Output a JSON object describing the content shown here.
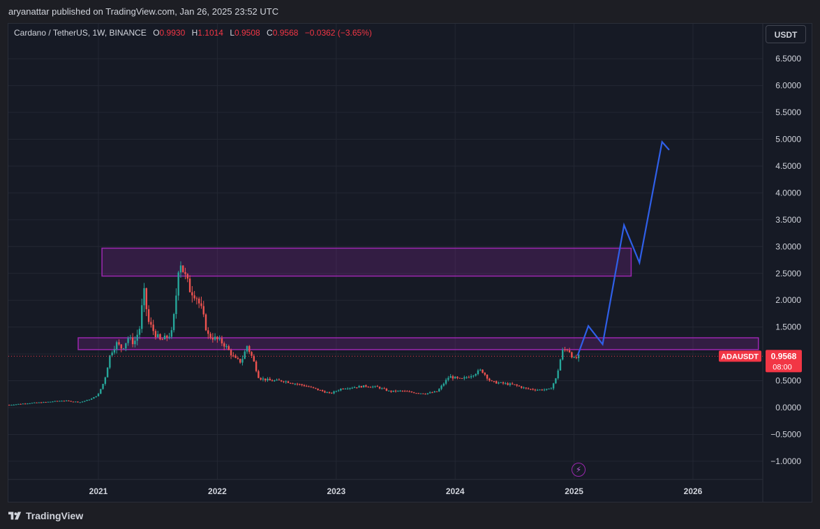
{
  "header": {
    "publisher_text": "aryanattar published on TradingView.com, Jan 26, 2025 23:52 UTC"
  },
  "legend": {
    "symbol": "Cardano / TetherUS, 1W, BINANCE",
    "open_label": "O",
    "open": "0.9930",
    "high_label": "H",
    "high": "1.1014",
    "low_label": "L",
    "low": "0.9508",
    "close_label": "C",
    "close": "0.9568",
    "change": "−0.0362 (−3.65%)"
  },
  "currency_button": "USDT",
  "price_badge": {
    "symbol": "ADAUSDT",
    "price": "0.9568",
    "countdown": "08:00"
  },
  "footer": {
    "brand": "TradingView"
  },
  "colors": {
    "up": "#26a69a",
    "down": "#ef5350",
    "zone_border": "#9c27b0",
    "zone_fill": "rgba(156,39,176,0.22)",
    "projection": "#2f5fe8",
    "price_line": "#f23645",
    "grid": "#232733",
    "text": "#d1d4dc"
  },
  "chart_data": {
    "type": "candlestick",
    "symbol": "ADAUSDT",
    "timeframe": "1W",
    "exchange": "BINANCE",
    "x_ticks": [
      "2021",
      "2022",
      "2023",
      "2024",
      "2025",
      "2026"
    ],
    "x_tick_dates": [
      2021.0,
      2022.0,
      2023.0,
      2024.0,
      2025.0,
      2026.0
    ],
    "y_ticks": [
      "6.5000",
      "6.0000",
      "5.5000",
      "5.0000",
      "4.5000",
      "4.0000",
      "3.5000",
      "3.0000",
      "2.5000",
      "2.0000",
      "1.5000",
      "1.0000",
      "0.5000",
      "0.0000",
      "−0.5000",
      "−1.0000"
    ],
    "y_tick_values": [
      6.5,
      6.0,
      5.5,
      5.0,
      4.5,
      4.0,
      3.5,
      3.0,
      2.5,
      2.0,
      1.5,
      1.0,
      0.5,
      0.0,
      -0.5,
      -1.0
    ],
    "ylim": [
      -1.4,
      6.85
    ],
    "xlim": [
      2020.23,
      2026.7
    ],
    "last_price": 0.9568,
    "price_path": [
      [
        2020.25,
        0.05
      ],
      [
        2020.4,
        0.08
      ],
      [
        2020.55,
        0.1
      ],
      [
        2020.7,
        0.13
      ],
      [
        2020.85,
        0.1
      ],
      [
        2020.95,
        0.17
      ],
      [
        2021.0,
        0.25
      ],
      [
        2021.05,
        0.5
      ],
      [
        2021.1,
        1.0
      ],
      [
        2021.15,
        1.2
      ],
      [
        2021.2,
        1.1
      ],
      [
        2021.25,
        1.3
      ],
      [
        2021.3,
        1.2
      ],
      [
        2021.35,
        1.5
      ],
      [
        2021.38,
        2.2
      ],
      [
        2021.42,
        1.6
      ],
      [
        2021.47,
        1.4
      ],
      [
        2021.52,
        1.25
      ],
      [
        2021.57,
        1.3
      ],
      [
        2021.62,
        1.4
      ],
      [
        2021.65,
        2.0
      ],
      [
        2021.68,
        2.8
      ],
      [
        2021.72,
        2.5
      ],
      [
        2021.77,
        2.2
      ],
      [
        2021.82,
        2.1
      ],
      [
        2021.87,
        1.8
      ],
      [
        2021.92,
        1.35
      ],
      [
        2021.97,
        1.3
      ],
      [
        2022.05,
        1.2
      ],
      [
        2022.1,
        1.05
      ],
      [
        2022.15,
        0.9
      ],
      [
        2022.2,
        0.85
      ],
      [
        2022.25,
        1.15
      ],
      [
        2022.3,
        0.9
      ],
      [
        2022.35,
        0.55
      ],
      [
        2022.45,
        0.5
      ],
      [
        2022.55,
        0.5
      ],
      [
        2022.65,
        0.45
      ],
      [
        2022.75,
        0.4
      ],
      [
        2022.85,
        0.33
      ],
      [
        2022.95,
        0.26
      ],
      [
        2023.05,
        0.36
      ],
      [
        2023.15,
        0.38
      ],
      [
        2023.25,
        0.4
      ],
      [
        2023.35,
        0.38
      ],
      [
        2023.45,
        0.3
      ],
      [
        2023.55,
        0.31
      ],
      [
        2023.65,
        0.28
      ],
      [
        2023.75,
        0.26
      ],
      [
        2023.85,
        0.3
      ],
      [
        2023.95,
        0.58
      ],
      [
        2024.05,
        0.52
      ],
      [
        2024.15,
        0.62
      ],
      [
        2024.22,
        0.7
      ],
      [
        2024.3,
        0.48
      ],
      [
        2024.4,
        0.45
      ],
      [
        2024.5,
        0.42
      ],
      [
        2024.6,
        0.35
      ],
      [
        2024.7,
        0.33
      ],
      [
        2024.8,
        0.34
      ],
      [
        2024.85,
        0.55
      ],
      [
        2024.9,
        1.05
      ],
      [
        2024.95,
        1.1
      ],
      [
        2025.0,
        0.9
      ],
      [
        2025.05,
        0.96
      ]
    ],
    "zones": [
      {
        "from": 2021.03,
        "to": 2025.48,
        "low": 2.45,
        "high": 2.97
      },
      {
        "from": 2020.83,
        "to": 2026.55,
        "low": 1.08,
        "high": 1.3
      }
    ],
    "projection": {
      "points": [
        [
          2025.03,
          0.97
        ],
        [
          2025.12,
          1.52
        ],
        [
          2025.24,
          1.18
        ],
        [
          2025.42,
          3.4
        ],
        [
          2025.55,
          2.7
        ],
        [
          2025.74,
          4.95
        ],
        [
          2025.8,
          4.8
        ]
      ]
    }
  }
}
